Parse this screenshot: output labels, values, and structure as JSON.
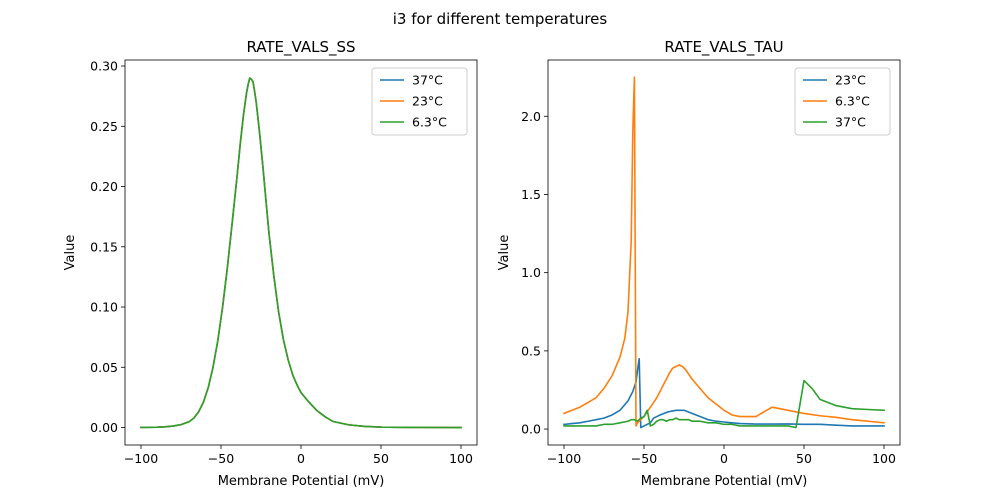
{
  "figure": {
    "suptitle": "i3 for different temperatures"
  },
  "chart_data": [
    {
      "type": "line",
      "title": "RATE_VALS_SS",
      "xlabel": "Membrane Potential (mV)",
      "ylabel": "Value",
      "xlim": [
        -110,
        110
      ],
      "ylim": [
        -0.0145,
        0.305
      ],
      "xticks": [
        -100,
        -50,
        0,
        50,
        100
      ],
      "yticks": [
        0.0,
        0.05,
        0.1,
        0.15,
        0.2,
        0.25,
        0.3
      ],
      "xtick_labels": [
        "−100",
        "−50",
        "0",
        "50",
        "100"
      ],
      "ytick_labels": [
        "0.00",
        "0.05",
        "0.10",
        "0.15",
        "0.20",
        "0.25",
        "0.30"
      ],
      "legend": "top-right",
      "grid": false,
      "x": [
        -100,
        -90,
        -85,
        -80,
        -75,
        -70,
        -67,
        -64,
        -61,
        -58,
        -55,
        -52,
        -49,
        -46,
        -43,
        -40,
        -38,
        -36,
        -34,
        -33,
        -32,
        -31,
        -30,
        -29,
        -28,
        -26,
        -24,
        -22,
        -20,
        -17,
        -14,
        -11,
        -8,
        -5,
        -2,
        0,
        5,
        10,
        15,
        20,
        30,
        40,
        50,
        60,
        80,
        100
      ],
      "series": [
        {
          "name": "37°C",
          "color": "#1f77b4",
          "y": [
            0.0001,
            0.0003,
            0.0006,
            0.0012,
            0.0024,
            0.0048,
            0.0078,
            0.013,
            0.021,
            0.033,
            0.05,
            0.072,
            0.1,
            0.133,
            0.17,
            0.208,
            0.235,
            0.259,
            0.278,
            0.285,
            0.29,
            0.289,
            0.287,
            0.279,
            0.27,
            0.246,
            0.219,
            0.19,
            0.161,
            0.126,
            0.096,
            0.073,
            0.056,
            0.043,
            0.034,
            0.029,
            0.021,
            0.014,
            0.009,
            0.005,
            0.0022,
            0.0009,
            0.0004,
            0.0002,
            0.0001,
            0.0
          ]
        },
        {
          "name": "23°C",
          "color": "#ff7f0e",
          "y": [
            0.0001,
            0.0003,
            0.0006,
            0.0012,
            0.0024,
            0.0048,
            0.0078,
            0.013,
            0.021,
            0.033,
            0.05,
            0.072,
            0.1,
            0.133,
            0.17,
            0.208,
            0.235,
            0.259,
            0.278,
            0.285,
            0.29,
            0.289,
            0.287,
            0.279,
            0.27,
            0.246,
            0.219,
            0.19,
            0.161,
            0.126,
            0.096,
            0.073,
            0.056,
            0.043,
            0.034,
            0.029,
            0.021,
            0.014,
            0.009,
            0.005,
            0.0022,
            0.0009,
            0.0004,
            0.0002,
            0.0001,
            0.0
          ]
        },
        {
          "name": "6.3°C",
          "color": "#2ca02c",
          "y": [
            0.0001,
            0.0003,
            0.0006,
            0.0012,
            0.0024,
            0.0048,
            0.0078,
            0.013,
            0.021,
            0.033,
            0.05,
            0.072,
            0.1,
            0.133,
            0.17,
            0.208,
            0.235,
            0.259,
            0.278,
            0.285,
            0.29,
            0.289,
            0.287,
            0.279,
            0.27,
            0.246,
            0.219,
            0.19,
            0.161,
            0.126,
            0.096,
            0.073,
            0.056,
            0.043,
            0.034,
            0.029,
            0.021,
            0.014,
            0.009,
            0.005,
            0.0022,
            0.0009,
            0.0004,
            0.0002,
            0.0001,
            0.0
          ]
        }
      ]
    },
    {
      "type": "line",
      "title": "RATE_VALS_TAU",
      "xlabel": "Membrane Potential (mV)",
      "ylabel": "Value",
      "xlim": [
        -110,
        110
      ],
      "ylim": [
        -0.102,
        2.36
      ],
      "xticks": [
        -100,
        -50,
        0,
        50,
        100
      ],
      "yticks": [
        0.0,
        0.5,
        1.0,
        1.5,
        2.0
      ],
      "xtick_labels": [
        "−100",
        "−50",
        "0",
        "50",
        "100"
      ],
      "ytick_labels": [
        "0.0",
        "0.5",
        "1.0",
        "1.5",
        "2.0"
      ],
      "legend": "top-right",
      "grid": false,
      "series": [
        {
          "name": "23°C",
          "color": "#1f77b4",
          "x": [
            -100,
            -95,
            -90,
            -85,
            -80,
            -75,
            -70,
            -65,
            -60,
            -57,
            -55,
            -54,
            -53,
            -52,
            -50,
            -48,
            -46,
            -44,
            -42,
            -40,
            -35,
            -30,
            -25,
            -20,
            -15,
            -10,
            -5,
            0,
            5,
            10,
            20,
            30,
            40,
            50,
            60,
            70,
            80,
            90,
            100
          ],
          "y": [
            0.03,
            0.035,
            0.04,
            0.05,
            0.06,
            0.07,
            0.09,
            0.12,
            0.18,
            0.24,
            0.3,
            0.38,
            0.45,
            0.01,
            0.02,
            0.03,
            0.04,
            0.07,
            0.08,
            0.09,
            0.11,
            0.12,
            0.12,
            0.1,
            0.08,
            0.06,
            0.05,
            0.045,
            0.04,
            0.035,
            0.032,
            0.032,
            0.033,
            0.03,
            0.03,
            0.025,
            0.02,
            0.02,
            0.02
          ]
        },
        {
          "name": "6.3°C",
          "color": "#ff7f0e",
          "x": [
            -100,
            -95,
            -90,
            -85,
            -80,
            -75,
            -70,
            -65,
            -62,
            -60,
            -58,
            -57,
            -56,
            -55,
            -54,
            -52,
            -50,
            -48,
            -46,
            -44,
            -42,
            -40,
            -38,
            -36,
            -34,
            -32,
            -30,
            -28,
            -26,
            -24,
            -22,
            -20,
            -15,
            -10,
            -5,
            0,
            5,
            10,
            15,
            20,
            25,
            30,
            40,
            50,
            60,
            70,
            80,
            90,
            100
          ],
          "y": [
            0.1,
            0.12,
            0.14,
            0.17,
            0.2,
            0.26,
            0.34,
            0.46,
            0.58,
            0.75,
            1.2,
            1.9,
            2.25,
            0.02,
            0.04,
            0.06,
            0.08,
            0.11,
            0.14,
            0.17,
            0.2,
            0.24,
            0.28,
            0.32,
            0.36,
            0.39,
            0.4,
            0.41,
            0.4,
            0.38,
            0.35,
            0.32,
            0.26,
            0.2,
            0.16,
            0.12,
            0.09,
            0.08,
            0.08,
            0.08,
            0.11,
            0.14,
            0.12,
            0.1,
            0.085,
            0.075,
            0.06,
            0.05,
            0.04
          ]
        },
        {
          "name": "37°C",
          "color": "#2ca02c",
          "x": [
            -100,
            -90,
            -85,
            -80,
            -75,
            -70,
            -65,
            -60,
            -58,
            -56,
            -54,
            -52,
            -50,
            -48,
            -46,
            -44,
            -42,
            -40,
            -38,
            -36,
            -34,
            -32,
            -30,
            -28,
            -26,
            -24,
            -22,
            -20,
            -15,
            -10,
            -5,
            0,
            5,
            10,
            15,
            20,
            30,
            40,
            45,
            50,
            55,
            60,
            70,
            80,
            90,
            100
          ],
          "y": [
            0.02,
            0.02,
            0.02,
            0.02,
            0.03,
            0.03,
            0.04,
            0.05,
            0.06,
            0.06,
            0.05,
            0.07,
            0.08,
            0.12,
            0.02,
            0.03,
            0.05,
            0.06,
            0.06,
            0.05,
            0.06,
            0.06,
            0.07,
            0.06,
            0.06,
            0.06,
            0.06,
            0.05,
            0.05,
            0.04,
            0.04,
            0.03,
            0.03,
            0.02,
            0.02,
            0.02,
            0.02,
            0.02,
            0.01,
            0.31,
            0.26,
            0.19,
            0.15,
            0.13,
            0.125,
            0.12
          ]
        }
      ]
    }
  ]
}
